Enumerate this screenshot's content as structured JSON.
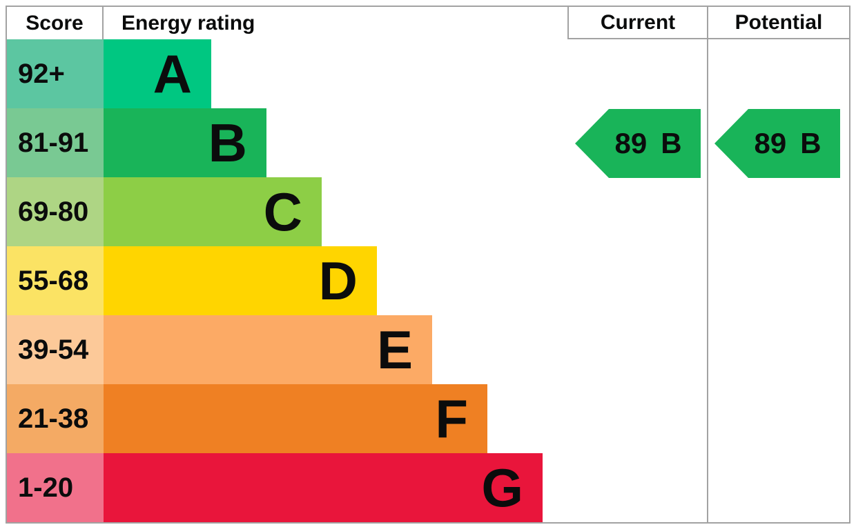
{
  "chart_data": {
    "type": "bar",
    "description": "EPC energy efficiency rating chart with colored bands A-G and current/potential rating arrows",
    "headers": {
      "score": "Score",
      "energy_rating": "Energy rating",
      "current": "Current",
      "potential": "Potential"
    },
    "bands": [
      {
        "letter": "A",
        "score_range": "92+",
        "bar_color": "#00c781",
        "score_cell_color": "#5cc6a1"
      },
      {
        "letter": "B",
        "score_range": "81-91",
        "bar_color": "#19b459",
        "score_cell_color": "#79c993"
      },
      {
        "letter": "C",
        "score_range": "69-80",
        "bar_color": "#8dce46",
        "score_cell_color": "#aed584"
      },
      {
        "letter": "D",
        "score_range": "55-68",
        "bar_color": "#ffd500",
        "score_cell_color": "#fbe364"
      },
      {
        "letter": "E",
        "score_range": "39-54",
        "bar_color": "#fcaa65",
        "score_cell_color": "#fcc999"
      },
      {
        "letter": "F",
        "score_range": "21-38",
        "bar_color": "#ef8023",
        "score_cell_color": "#f4aa64"
      },
      {
        "letter": "G",
        "score_range": "1-20",
        "bar_color": "#e9153b",
        "score_cell_color": "#f1718b"
      }
    ],
    "current": {
      "score": "89",
      "grade": "B",
      "arrow_color": "#19b459"
    },
    "potential": {
      "score": "89",
      "grade": "B",
      "arrow_color": "#19b459"
    }
  }
}
